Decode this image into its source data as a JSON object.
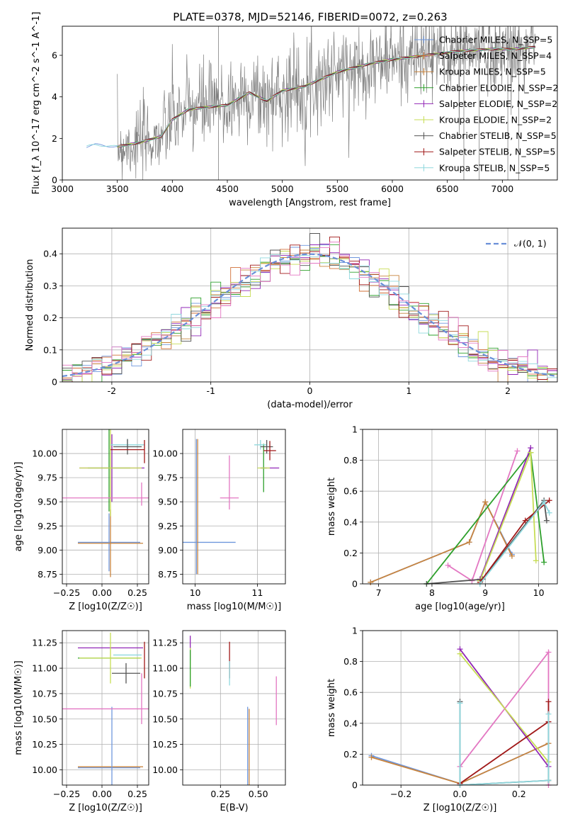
{
  "figure_title": "PLATE=0378, MJD=52146, FIBERID=0072, z=0.263",
  "colors": {
    "Chabrier MILES": "#6f97dd",
    "Salpeter MILES": "#d06f36",
    "Kroupa MILES": "#c8843e",
    "Chabrier ELODIE": "#2ea02c",
    "Salpeter ELODIE": "#9227b7",
    "Kroupa ELODIE": "#c7dd55",
    "Chabrier STELIB": "#555555",
    "Salpeter STELIB": "#a01818",
    "Kroupa STELIB": "#8fd8de",
    "pink": "#e377c2",
    "data": "#808080"
  },
  "chart_data": [
    {
      "id": "spectrum",
      "type": "line",
      "title": "PLATE=0378, MJD=52146, FIBERID=0072, z=0.263",
      "xlabel": "wavelength [Angstrom, rest frame]",
      "ylabel": "Flux [f_λ 10^-17 erg cm^-2 s^-1 A^-1]",
      "xlim": [
        3000,
        7500
      ],
      "ylim": [
        0,
        7.4
      ],
      "xticks": [
        3000,
        3500,
        4000,
        4500,
        5000,
        5500,
        6000,
        6500,
        7000
      ],
      "yticks": [
        0,
        2,
        4,
        6
      ],
      "grid": false,
      "legend_position": "top-right",
      "legend": [
        "Chabrier MILES, N_SSP=5",
        "Salpeter MILES, N_SSP=4",
        "Kroupa MILES, N_SSP=5",
        "Chabrier ELODIE, N_SSP=2",
        "Salpeter ELODIE, N_SSP=2",
        "Kroupa ELODIE, N_SSP=2",
        "Chabrier STELIB, N_SSP=5",
        "Salpeter STELIB, N_SSP=5",
        "Kroupa STELIB, N_SSP=5"
      ],
      "continuum": {
        "x": [
          3220,
          3300,
          3500,
          3700,
          3900,
          4000,
          4150,
          4300,
          4500,
          4700,
          4860,
          5000,
          5200,
          5500,
          5800,
          6000,
          6300,
          6600,
          6900,
          7100,
          7300
        ],
        "y": [
          1.6,
          1.7,
          1.6,
          1.8,
          2.1,
          2.9,
          3.4,
          3.5,
          3.6,
          4.2,
          3.8,
          4.3,
          4.5,
          5.2,
          5.6,
          5.8,
          6.0,
          6.2,
          6.3,
          6.3,
          6.4
        ]
      }
    },
    {
      "id": "residuals",
      "type": "line",
      "xlabel": "(data-model)/error",
      "ylabel": "Normed distribution",
      "xlim": [
        -2.5,
        2.5
      ],
      "ylim": [
        0,
        0.48
      ],
      "xticks": [
        -2,
        -1,
        0,
        1,
        2
      ],
      "yticks": [
        0.0,
        0.1,
        0.2,
        0.3,
        0.4
      ],
      "grid": true,
      "legend_position": "top-right",
      "legend": [
        "𝒩(0, 1)"
      ]
    },
    {
      "id": "age-vs-Z",
      "type": "scatter",
      "xlabel": "Z [log10(Z/Z☉)]",
      "ylabel": "age  [log10(age/yr)]",
      "xlim": [
        -0.28,
        0.33
      ],
      "ylim": [
        8.65,
        10.25
      ],
      "xticks": [
        -0.25,
        0.0,
        0.25
      ],
      "xticklabels": [
        "−0.25",
        "0.00",
        "0.25"
      ],
      "yticks": [
        8.75,
        9.0,
        9.25,
        9.5,
        9.75,
        10.0
      ],
      "yticklabels": [
        "8.75",
        "9.00",
        "9.25",
        "9.50",
        "9.75",
        "10.00"
      ],
      "grid": true,
      "points": [
        {
          "model": "Chabrier MILES",
          "x": 0.05,
          "y": 9.08,
          "xerr": 0.22,
          "yerr": 0.3
        },
        {
          "model": "Kroupa MILES",
          "x": 0.06,
          "y": 9.07,
          "xerr": 0.23,
          "yerr": 0.35
        },
        {
          "model": "Chabrier ELODIE",
          "x": 0.05,
          "y": 9.85,
          "xerr": 0.15,
          "yerr": 0.45
        },
        {
          "model": "Salpeter ELODIE",
          "x": 0.07,
          "y": 9.85,
          "xerr": 0.23,
          "yerr": 0.35
        },
        {
          "model": "Kroupa ELODIE",
          "x": 0.06,
          "y": 9.85,
          "xerr": 0.22,
          "yerr": 0.5
        },
        {
          "model": "pink",
          "x": 0.05,
          "y": 9.54,
          "xerr": 0.33,
          "yerr": 0.0
        },
        {
          "model": "pink",
          "x": 0.28,
          "y": 9.58,
          "xerr": 0.0,
          "yerr": 0.12
        },
        {
          "model": "Kroupa STELIB",
          "x": 0.18,
          "y": 10.09,
          "xerr": 0.12,
          "yerr": 0.06
        },
        {
          "model": "Chabrier STELIB",
          "x": 0.18,
          "y": 10.07,
          "xerr": 0.1,
          "yerr": 0.08
        },
        {
          "model": "Salpeter STELIB",
          "x": 0.3,
          "y": 10.02,
          "xerr": 0.0,
          "yerr": 0.12
        },
        {
          "model": "Salpeter STELIB",
          "x": 0.18,
          "y": 10.04,
          "xerr": 0.12,
          "yerr": 0.0
        }
      ]
    },
    {
      "id": "age-vs-mass",
      "type": "scatter",
      "xlabel": "mass [log10(M/M☉)]",
      "ylabel": "",
      "xlim": [
        9.8,
        11.45
      ],
      "ylim": [
        8.65,
        10.25
      ],
      "xticks": [
        10,
        11
      ],
      "xticklabels": [
        "10",
        "11"
      ],
      "yticks": [
        8.75,
        9.0,
        9.25,
        9.5,
        9.75,
        10.0
      ],
      "yticklabels": [
        "8.75",
        "9.00",
        "9.25",
        "9.50",
        "9.75",
        "10.00"
      ],
      "grid": true,
      "points": [
        {
          "model": "Chabrier MILES",
          "x": 10.05,
          "y": 9.08,
          "xerr": 0.6,
          "yerr": 0.0
        },
        {
          "model": "Chabrier MILES",
          "x": 10.02,
          "y": 9.45,
          "xerr": 0.0,
          "yerr": 0.7
        },
        {
          "model": "Kroupa MILES",
          "x": 10.04,
          "y": 9.45,
          "xerr": 0.0,
          "yerr": 0.7
        },
        {
          "model": "pink",
          "x": 10.55,
          "y": 9.54,
          "xerr": 0.15,
          "yerr": 0.0
        },
        {
          "model": "pink",
          "x": 10.55,
          "y": 9.7,
          "xerr": 0.0,
          "yerr": 0.28
        },
        {
          "model": "Chabrier ELODIE",
          "x": 11.1,
          "y": 9.85,
          "xerr": 0.05,
          "yerr": 0.25
        },
        {
          "model": "Salpeter ELODIE",
          "x": 11.2,
          "y": 9.85,
          "xerr": 0.15,
          "yerr": 0.0
        },
        {
          "model": "Kroupa ELODIE",
          "x": 11.1,
          "y": 9.85,
          "xerr": 0.1,
          "yerr": 0.0
        },
        {
          "model": "Kroupa STELIB",
          "x": 11.05,
          "y": 10.09,
          "xerr": 0.1,
          "yerr": 0.05
        },
        {
          "model": "Chabrier STELIB",
          "x": 11.15,
          "y": 10.07,
          "xerr": 0.1,
          "yerr": 0.07
        },
        {
          "model": "Salpeter STELIB",
          "x": 11.2,
          "y": 10.03,
          "xerr": 0.1,
          "yerr": 0.1
        }
      ]
    },
    {
      "id": "weight-vs-age",
      "type": "line",
      "xlabel": "age  [log10(age/yr)]",
      "ylabel": "mass weight",
      "xlim": [
        6.7,
        10.35
      ],
      "ylim": [
        0.0,
        1.0
      ],
      "xticks": [
        7,
        8,
        9,
        10
      ],
      "yticks": [
        0.0,
        0.2,
        0.4,
        0.6,
        0.8,
        1.0
      ],
      "grid": true,
      "series": [
        {
          "model": "Chabrier MILES",
          "x": [
            6.85,
            8.7,
            9.0,
            9.5
          ],
          "y": [
            0.01,
            0.27,
            0.53,
            0.19
          ]
        },
        {
          "model": "Kroupa MILES",
          "x": [
            6.85,
            8.7,
            9.0,
            9.5
          ],
          "y": [
            0.01,
            0.27,
            0.53,
            0.18
          ]
        },
        {
          "model": "pink",
          "x": [
            8.3,
            8.75,
            9.6
          ],
          "y": [
            0.12,
            0.02,
            0.86
          ]
        },
        {
          "model": "Chabrier ELODIE",
          "x": [
            7.9,
            9.85,
            10.1
          ],
          "y": [
            0.0,
            0.85,
            0.14
          ]
        },
        {
          "model": "Salpeter ELODIE",
          "x": [
            8.9,
            9.85
          ],
          "y": [
            0.03,
            0.88
          ]
        },
        {
          "model": "Kroupa ELODIE",
          "x": [
            8.9,
            9.85,
            9.95
          ],
          "y": [
            0.02,
            0.85,
            0.15
          ]
        },
        {
          "model": "Chabrier STELIB",
          "x": [
            7.9,
            8.95,
            10.1,
            10.15
          ],
          "y": [
            0.0,
            0.03,
            0.54,
            0.41
          ]
        },
        {
          "model": "Salpeter STELIB",
          "x": [
            8.9,
            9.75,
            10.2
          ],
          "y": [
            0.01,
            0.41,
            0.54
          ]
        },
        {
          "model": "Kroupa STELIB",
          "x": [
            8.9,
            10.1,
            10.2
          ],
          "y": [
            0.0,
            0.53,
            0.46
          ]
        }
      ]
    },
    {
      "id": "mass-vs-Z",
      "type": "scatter",
      "xlabel": "Z [log10(Z/Z☉)]",
      "ylabel": "mass [log10(M/M☉)]",
      "xlim": [
        -0.28,
        0.33
      ],
      "ylim": [
        9.85,
        11.37
      ],
      "xticks": [
        -0.25,
        0.0,
        0.25
      ],
      "xticklabels": [
        "−0.25",
        "0.00",
        "0.25"
      ],
      "yticks": [
        10.0,
        10.25,
        10.5,
        10.75,
        11.0,
        11.25
      ],
      "yticklabels": [
        "10.00",
        "10.25",
        "10.50",
        "10.75",
        "11.00",
        "11.25"
      ],
      "grid": true,
      "points": [
        {
          "model": "Chabrier MILES",
          "x": 0.05,
          "y": 10.02,
          "xerr": 0.22,
          "yerr": 0.0
        },
        {
          "model": "Kroupa MILES",
          "x": 0.06,
          "y": 10.03,
          "xerr": 0.23,
          "yerr": 0.0
        },
        {
          "model": "Chabrier MILES",
          "x": 0.07,
          "y": 10.22,
          "xerr": 0.0,
          "yerr": 0.4
        },
        {
          "model": "pink",
          "x": 0.05,
          "y": 10.6,
          "xerr": 0.33,
          "yerr": 0.0
        },
        {
          "model": "pink",
          "x": 0.28,
          "y": 10.7,
          "xerr": 0.0,
          "yerr": 0.25
        },
        {
          "model": "Salpeter ELODIE",
          "x": 0.06,
          "y": 11.2,
          "xerr": 0.23,
          "yerr": 0.0
        },
        {
          "model": "Chabrier ELODIE",
          "x": 0.05,
          "y": 11.1,
          "xerr": 0.22,
          "yerr": 0.0
        },
        {
          "model": "Kroupa ELODIE",
          "x": 0.06,
          "y": 11.1,
          "xerr": 0.22,
          "yerr": 0.25
        },
        {
          "model": "Kroupa STELIB",
          "x": 0.18,
          "y": 11.13,
          "xerr": 0.1,
          "yerr": 0.0
        },
        {
          "model": "Chabrier STELIB",
          "x": 0.17,
          "y": 10.95,
          "xerr": 0.1,
          "yerr": 0.1
        },
        {
          "model": "Salpeter STELIB",
          "x": 0.3,
          "y": 11.08,
          "xerr": 0.0,
          "yerr": 0.18
        }
      ]
    },
    {
      "id": "mass-vs-EBV",
      "type": "scatter",
      "xlabel": "E(B-V)",
      "ylabel": "",
      "xlim": [
        0.0,
        0.68
      ],
      "ylim": [
        9.85,
        11.37
      ],
      "xticks": [
        0.25,
        0.5
      ],
      "xticklabels": [
        "0.25",
        "0.50"
      ],
      "yticks": [
        10.0,
        10.25,
        10.5,
        10.75,
        11.0,
        11.25
      ],
      "yticklabels": [
        "10.00",
        "10.25",
        "10.50",
        "10.75",
        "11.00",
        "11.25"
      ],
      "grid": true,
      "points": [
        {
          "model": "Salpeter ELODIE",
          "x": 0.05,
          "y": 11.2,
          "xerr": 0.0,
          "yerr": 0.12
        },
        {
          "model": "Kroupa ELODIE",
          "x": 0.05,
          "y": 11.0,
          "xerr": 0.0,
          "yerr": 0.2
        },
        {
          "model": "Chabrier ELODIE",
          "x": 0.05,
          "y": 11.0,
          "xerr": 0.0,
          "yerr": 0.18
        },
        {
          "model": "Salpeter STELIB",
          "x": 0.31,
          "y": 11.08,
          "xerr": 0.0,
          "yerr": 0.18
        },
        {
          "model": "Kroupa STELIB",
          "x": 0.31,
          "y": 10.95,
          "xerr": 0.0,
          "yerr": 0.12
        },
        {
          "model": "Chabrier MILES",
          "x": 0.43,
          "y": 10.22,
          "xerr": 0.0,
          "yerr": 0.4
        },
        {
          "model": "Kroupa MILES",
          "x": 0.44,
          "y": 10.22,
          "xerr": 0.0,
          "yerr": 0.38
        },
        {
          "model": "pink",
          "x": 0.62,
          "y": 10.68,
          "xerr": 0.0,
          "yerr": 0.24
        }
      ]
    },
    {
      "id": "weight-vs-Z",
      "type": "line",
      "xlabel": "Z [log10(Z/Z☉)]",
      "ylabel": "mass weight",
      "xlim": [
        -0.33,
        0.33
      ],
      "ylim": [
        0.0,
        1.0
      ],
      "xticks": [
        -0.2,
        0.0,
        0.2
      ],
      "xticklabels": [
        "−0.2",
        "0.0",
        "0.2"
      ],
      "yticks": [
        0.0,
        0.2,
        0.4,
        0.6,
        0.8,
        1.0
      ],
      "grid": true,
      "series": [
        {
          "model": "Chabrier MILES",
          "x": [
            -0.3,
            0.0,
            0.3
          ],
          "y": [
            0.19,
            0.01,
            0.27
          ]
        },
        {
          "model": "Kroupa MILES",
          "x": [
            -0.3,
            0.0,
            0.3
          ],
          "y": [
            0.18,
            0.01,
            0.27
          ]
        },
        {
          "model": "pink",
          "x": [
            0.0,
            0.3,
            0.3
          ],
          "y": [
            0.12,
            0.86,
            0.0
          ]
        },
        {
          "model": "Salpeter ELODIE",
          "x": [
            0.0,
            0.3,
            0.3
          ],
          "y": [
            0.88,
            0.12,
            0.03
          ]
        },
        {
          "model": "Kroupa ELODIE",
          "x": [
            0.0,
            0.3,
            0.3
          ],
          "y": [
            0.85,
            0.15,
            0.03
          ]
        },
        {
          "model": "Chabrier STELIB",
          "x": [
            0.0,
            0.0,
            0.3,
            0.3
          ],
          "y": [
            0.54,
            0.0,
            0.03,
            0.41
          ]
        },
        {
          "model": "Salpeter STELIB",
          "x": [
            0.0,
            0.3,
            0.3
          ],
          "y": [
            0.01,
            0.41,
            0.54
          ]
        },
        {
          "model": "Kroupa STELIB",
          "x": [
            0.0,
            0.0,
            0.3,
            0.3
          ],
          "y": [
            0.53,
            0.0,
            0.03,
            0.46
          ]
        }
      ]
    }
  ]
}
